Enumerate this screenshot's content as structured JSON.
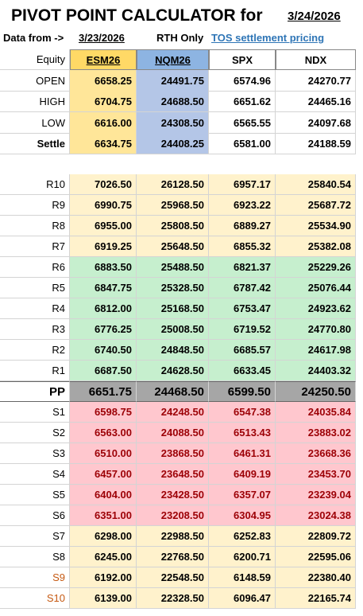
{
  "title": "PIVOT POINT CALCULATOR for",
  "date": "3/24/2026",
  "info": {
    "data_from_label": "Data from ->",
    "data_from_date": "3/23/2026",
    "session": "RTH Only",
    "source": "TOS settlement pricing"
  },
  "table": {
    "header": [
      "Equity",
      "ESM26",
      "NQM26",
      "SPX",
      "NDX"
    ],
    "quote_rows": [
      [
        "OPEN",
        "6658.25",
        "24491.75",
        "6574.96",
        "24270.77"
      ],
      [
        "HIGH",
        "6704.75",
        "24688.50",
        "6651.62",
        "24465.16"
      ],
      [
        "LOW",
        "6616.00",
        "24308.50",
        "6565.55",
        "24097.68"
      ],
      [
        "Settle",
        "6634.75",
        "24408.25",
        "6581.00",
        "24188.59"
      ]
    ],
    "pivot_rows": [
      [
        "R10",
        "7026.50",
        "26128.50",
        "6957.17",
        "25840.54"
      ],
      [
        "R9",
        "6990.75",
        "25968.50",
        "6923.22",
        "25687.72"
      ],
      [
        "R8",
        "6955.00",
        "25808.50",
        "6889.27",
        "25534.90"
      ],
      [
        "R7",
        "6919.25",
        "25648.50",
        "6855.32",
        "25382.08"
      ],
      [
        "R6",
        "6883.50",
        "25488.50",
        "6821.37",
        "25229.26"
      ],
      [
        "R5",
        "6847.75",
        "25328.50",
        "6787.42",
        "25076.44"
      ],
      [
        "R4",
        "6812.00",
        "25168.50",
        "6753.47",
        "24923.62"
      ],
      [
        "R3",
        "6776.25",
        "25008.50",
        "6719.52",
        "24770.80"
      ],
      [
        "R2",
        "6740.50",
        "24848.50",
        "6685.57",
        "24617.98"
      ],
      [
        "R1",
        "6687.50",
        "24628.50",
        "6633.45",
        "24403.32"
      ],
      [
        "PP",
        "6651.75",
        "24468.50",
        "6599.50",
        "24250.50"
      ],
      [
        "S1",
        "6598.75",
        "24248.50",
        "6547.38",
        "24035.84"
      ],
      [
        "S2",
        "6563.00",
        "24088.50",
        "6513.43",
        "23883.02"
      ],
      [
        "S3",
        "6510.00",
        "23868.50",
        "6461.31",
        "23668.36"
      ],
      [
        "S4",
        "6457.00",
        "23648.50",
        "6409.19",
        "23453.70"
      ],
      [
        "S5",
        "6404.00",
        "23428.50",
        "6357.07",
        "23239.04"
      ],
      [
        "S6",
        "6351.00",
        "23208.50",
        "6304.95",
        "23024.38"
      ],
      [
        "S7",
        "6298.00",
        "22988.50",
        "6252.83",
        "22809.72"
      ],
      [
        "S8",
        "6245.00",
        "22768.50",
        "6200.71",
        "22595.06"
      ],
      [
        "S9",
        "6192.00",
        "22548.50",
        "6148.59",
        "22380.40"
      ],
      [
        "S10",
        "6139.00",
        "22328.50",
        "6096.47",
        "22165.74"
      ]
    ]
  }
}
